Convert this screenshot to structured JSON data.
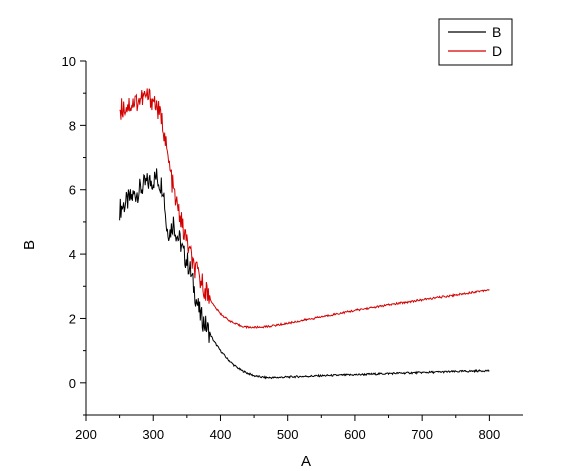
{
  "chart_data": {
    "type": "line",
    "xlabel": "A",
    "ylabel": "B",
    "xlim": [
      200,
      850
    ],
    "ylim": [
      -1,
      10
    ],
    "xticks": [
      200,
      300,
      400,
      500,
      600,
      700,
      800
    ],
    "yticks": [
      0,
      2,
      4,
      6,
      8,
      10
    ],
    "grid": false,
    "legend_position": "top-right",
    "series": [
      {
        "name": "B",
        "color": "#000000",
        "x": [
          250,
          260,
          270,
          280,
          290,
          300,
          305,
          310,
          315,
          320,
          325,
          330,
          335,
          340,
          345,
          350,
          355,
          360,
          365,
          370,
          375,
          380,
          390,
          400,
          410,
          420,
          430,
          440,
          450,
          460,
          470,
          480,
          500,
          550,
          600,
          650,
          700,
          750,
          800
        ],
        "y": [
          5.4,
          5.6,
          5.8,
          6.0,
          6.2,
          6.3,
          6.4,
          6.2,
          6.1,
          4.8,
          4.7,
          5.0,
          4.6,
          4.4,
          4.0,
          3.8,
          3.5,
          3.0,
          2.5,
          2.1,
          1.9,
          1.7,
          1.3,
          1.0,
          0.75,
          0.55,
          0.4,
          0.3,
          0.22,
          0.18,
          0.16,
          0.16,
          0.18,
          0.22,
          0.25,
          0.29,
          0.32,
          0.35,
          0.38
        ]
      },
      {
        "name": "D",
        "color": "#d40000",
        "x": [
          250,
          260,
          270,
          280,
          290,
          300,
          305,
          310,
          315,
          320,
          325,
          330,
          335,
          340,
          345,
          350,
          355,
          360,
          365,
          370,
          375,
          380,
          390,
          400,
          410,
          420,
          430,
          440,
          450,
          460,
          470,
          480,
          500,
          550,
          600,
          650,
          700,
          750,
          800
        ],
        "y": [
          8.5,
          8.6,
          8.7,
          8.8,
          8.9,
          8.8,
          8.6,
          8.3,
          8.0,
          7.2,
          6.6,
          6.0,
          5.5,
          5.2,
          4.7,
          4.4,
          4.0,
          3.6,
          3.4,
          3.2,
          3.0,
          2.8,
          2.4,
          2.15,
          1.98,
          1.85,
          1.77,
          1.73,
          1.72,
          1.73,
          1.75,
          1.78,
          1.85,
          2.05,
          2.25,
          2.42,
          2.58,
          2.73,
          2.9
        ]
      }
    ]
  }
}
